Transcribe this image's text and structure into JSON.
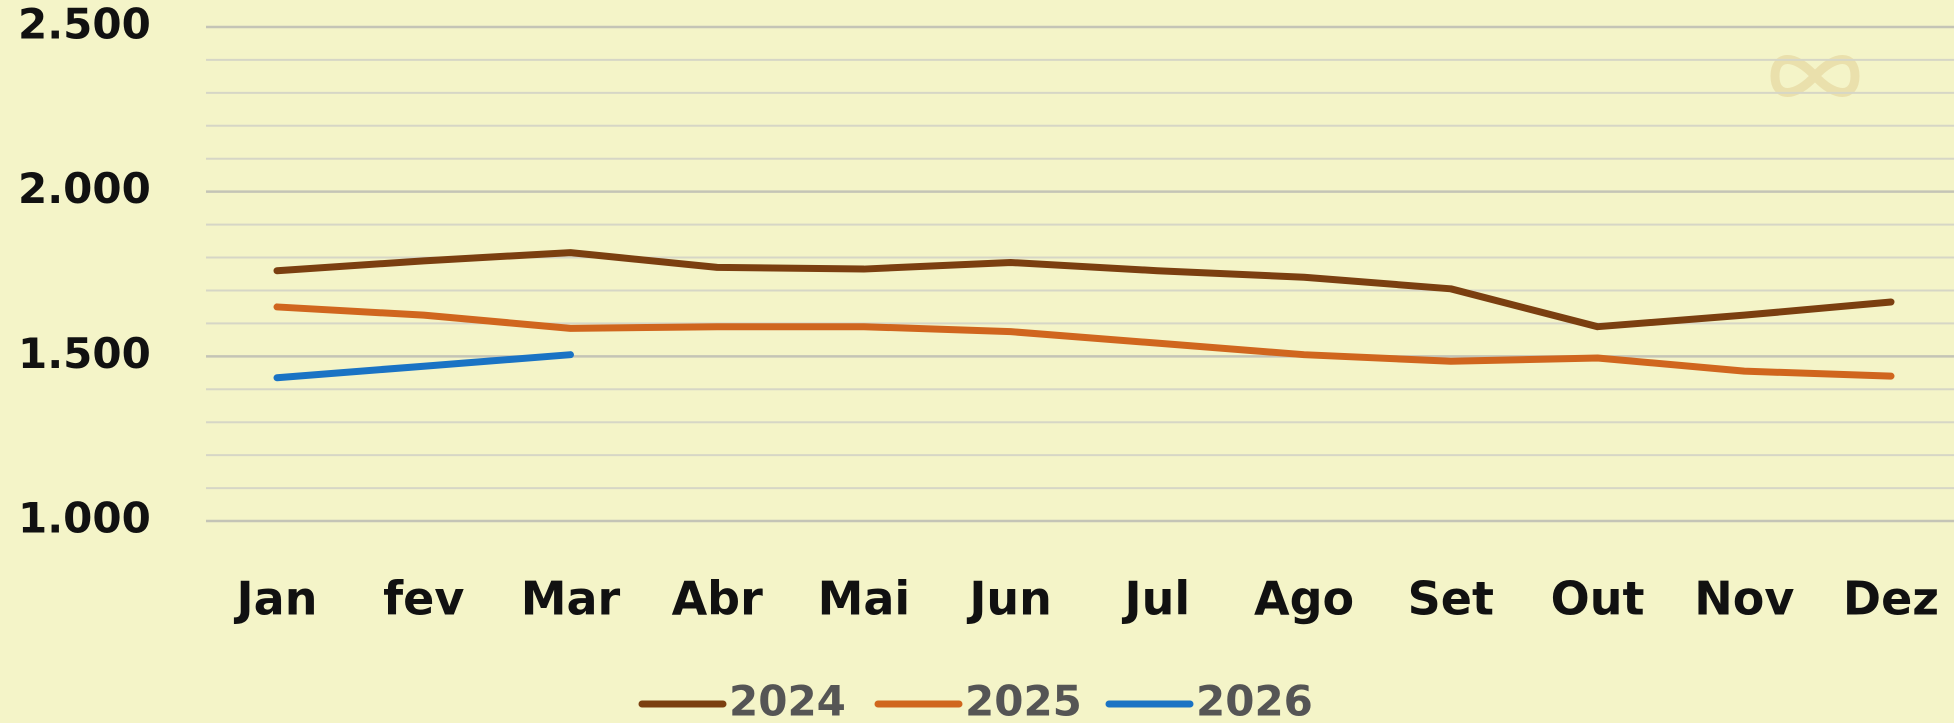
{
  "chart_data": {
    "type": "line",
    "categories": [
      "Jan",
      "fev",
      "Mar",
      "Abr",
      "Mai",
      "Jun",
      "Jul",
      "Ago",
      "Set",
      "Out",
      "Nov",
      "Dez"
    ],
    "series": [
      {
        "name": "2024",
        "color": "#7b3f10",
        "values": [
          1760,
          1790,
          1815,
          1770,
          1765,
          1785,
          1760,
          1740,
          1705,
          1590,
          1625,
          1665
        ]
      },
      {
        "name": "2025",
        "color": "#d0661e",
        "values": [
          1650,
          1625,
          1585,
          1590,
          1590,
          1575,
          1540,
          1505,
          1485,
          1495,
          1455,
          1440
        ]
      },
      {
        "name": "2026",
        "color": "#1a73c4",
        "values": [
          1435,
          1470,
          1505,
          null,
          null,
          null,
          null,
          null,
          null,
          null,
          null,
          null
        ]
      }
    ],
    "ylim": [
      1000,
      2500
    ],
    "yticks": [
      {
        "value": 1000,
        "label": "1.000"
      },
      {
        "value": 1500,
        "label": "1.500"
      },
      {
        "value": 2000,
        "label": "2.000"
      },
      {
        "value": 2500,
        "label": "2.500"
      }
    ],
    "minor_yticks": [
      1100,
      1200,
      1300,
      1400,
      1600,
      1700,
      1800,
      1900,
      2100,
      2200,
      2300,
      2400
    ],
    "grid": true,
    "legend": "bottom"
  }
}
